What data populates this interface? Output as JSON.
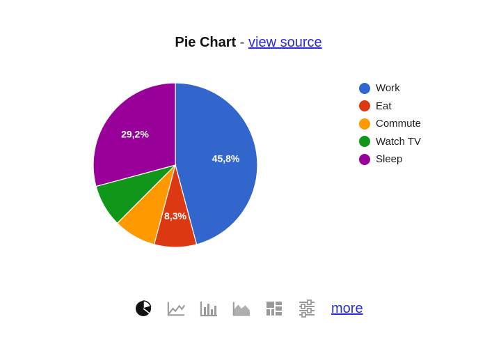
{
  "header": {
    "title": "Pie Chart",
    "separator": "-",
    "view_source_label": "view source"
  },
  "colors": {
    "Work": "#3366cc",
    "Eat": "#dc3912",
    "Commute": "#ff9900",
    "Watch TV": "#109618",
    "Sleep": "#990099",
    "link": "#2a2ae0",
    "toolbar_active": "#111111",
    "toolbar_inactive": "#9a9a9a"
  },
  "chart_data": {
    "type": "pie",
    "categories": [
      "Work",
      "Eat",
      "Commute",
      "Watch TV",
      "Sleep"
    ],
    "values": [
      11,
      2,
      2,
      2,
      7
    ],
    "slice_labels": [
      "45,8%",
      "8,3%",
      "",
      "",
      "29,2%"
    ],
    "legend_position": "right"
  },
  "toolbar": {
    "tools": [
      {
        "icon": "pie-chart-icon",
        "active": true
      },
      {
        "icon": "line-chart-icon",
        "active": false
      },
      {
        "icon": "bar-chart-icon",
        "active": false
      },
      {
        "icon": "area-chart-icon",
        "active": false
      },
      {
        "icon": "grid-chart-icon",
        "active": false
      },
      {
        "icon": "options-sliders-icon",
        "active": false
      }
    ],
    "more_label": "more"
  }
}
